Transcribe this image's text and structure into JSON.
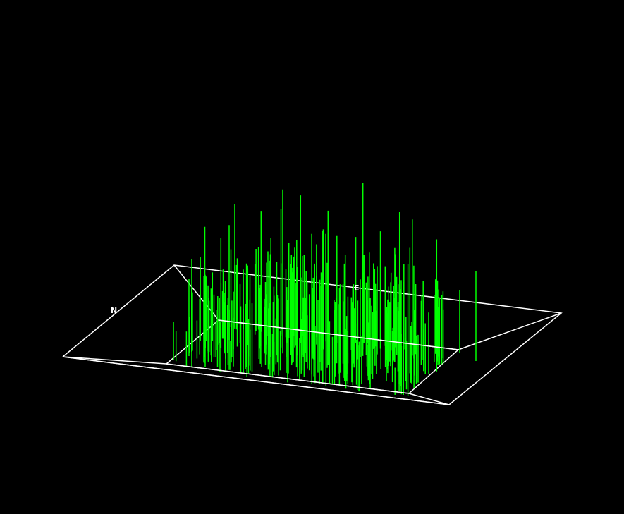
{
  "scene": {
    "background_color": "#000000",
    "frame_color": "#ffffff",
    "stick_color": "#00ff00",
    "labels": {
      "north": "N",
      "east": "E"
    },
    "sticks_description_note": "",
    "stick_count_visible": 0
  }
}
